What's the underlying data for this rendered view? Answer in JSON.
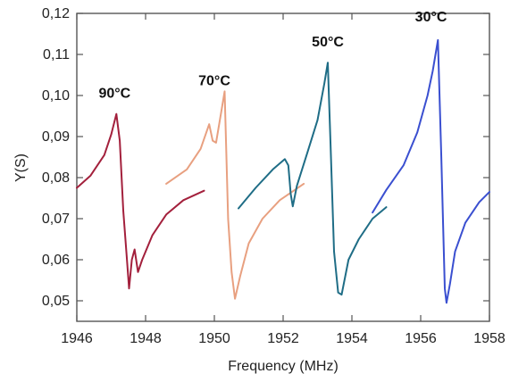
{
  "chart_data": {
    "type": "line",
    "xlabel": "Frequency (MHz)",
    "ylabel": "Y(S)",
    "xlim": [
      1946,
      1958
    ],
    "ylim": [
      0.045,
      0.12
    ],
    "xticks": [
      1946,
      1948,
      1950,
      1952,
      1954,
      1956,
      1958
    ],
    "xtick_labels": [
      "1946",
      "1948",
      "1950",
      "1952",
      "1954",
      "1956",
      "1958"
    ],
    "yticks": [
      0.05,
      0.06,
      0.07,
      0.08,
      0.09,
      0.1,
      0.11,
      0.12
    ],
    "ytick_labels": [
      "0,05",
      "0,06",
      "0,07",
      "0,08",
      "0,09",
      "0,10",
      "0,11",
      "0,12"
    ],
    "grid": false,
    "legend": "none",
    "series": [
      {
        "name": "90°C",
        "color": "#a3203c",
        "label_at": [
          1947.1,
          0.0995
        ],
        "points": [
          [
            1946.0,
            0.0775
          ],
          [
            1946.4,
            0.0805
          ],
          [
            1946.8,
            0.0855
          ],
          [
            1947.0,
            0.0905
          ],
          [
            1947.15,
            0.0955
          ],
          [
            1947.25,
            0.089
          ],
          [
            1947.35,
            0.072
          ],
          [
            1947.45,
            0.061
          ],
          [
            1947.52,
            0.053
          ],
          [
            1947.6,
            0.06
          ],
          [
            1947.68,
            0.0625
          ],
          [
            1947.78,
            0.057
          ],
          [
            1947.9,
            0.06
          ],
          [
            1948.2,
            0.066
          ],
          [
            1948.6,
            0.071
          ],
          [
            1949.1,
            0.0745
          ],
          [
            1949.7,
            0.0768
          ]
        ]
      },
      {
        "name": "70°C",
        "color": "#e8a080",
        "label_at": [
          1950.0,
          0.1025
        ],
        "points": [
          [
            1948.6,
            0.0785
          ],
          [
            1949.2,
            0.082
          ],
          [
            1949.6,
            0.087
          ],
          [
            1949.85,
            0.093
          ],
          [
            1949.95,
            0.089
          ],
          [
            1950.05,
            0.0885
          ],
          [
            1950.2,
            0.096
          ],
          [
            1950.3,
            0.101
          ],
          [
            1950.4,
            0.07
          ],
          [
            1950.5,
            0.057
          ],
          [
            1950.6,
            0.0505
          ],
          [
            1950.75,
            0.056
          ],
          [
            1951.0,
            0.064
          ],
          [
            1951.4,
            0.07
          ],
          [
            1951.9,
            0.0745
          ],
          [
            1952.6,
            0.0785
          ]
        ]
      },
      {
        "name": "50°C",
        "color": "#1f6d86",
        "label_at": [
          1953.3,
          0.112
        ],
        "points": [
          [
            1950.7,
            0.0725
          ],
          [
            1951.2,
            0.0775
          ],
          [
            1951.7,
            0.082
          ],
          [
            1952.05,
            0.0845
          ],
          [
            1952.15,
            0.083
          ],
          [
            1952.22,
            0.076
          ],
          [
            1952.28,
            0.073
          ],
          [
            1952.4,
            0.078
          ],
          [
            1952.7,
            0.086
          ],
          [
            1953.0,
            0.094
          ],
          [
            1953.2,
            0.103
          ],
          [
            1953.3,
            0.108
          ],
          [
            1953.38,
            0.088
          ],
          [
            1953.48,
            0.062
          ],
          [
            1953.6,
            0.052
          ],
          [
            1953.7,
            0.0515
          ],
          [
            1953.9,
            0.06
          ],
          [
            1954.2,
            0.065
          ],
          [
            1954.6,
            0.07
          ],
          [
            1955.0,
            0.0728
          ]
        ]
      },
      {
        "name": "30°C",
        "color": "#3a4fd0",
        "label_at": [
          1956.3,
          0.118
        ],
        "points": [
          [
            1954.6,
            0.0715
          ],
          [
            1955.0,
            0.077
          ],
          [
            1955.5,
            0.083
          ],
          [
            1955.9,
            0.091
          ],
          [
            1956.2,
            0.1
          ],
          [
            1956.35,
            0.106
          ],
          [
            1956.5,
            0.1135
          ],
          [
            1956.6,
            0.085
          ],
          [
            1956.7,
            0.053
          ],
          [
            1956.75,
            0.0495
          ],
          [
            1956.85,
            0.054
          ],
          [
            1957.0,
            0.062
          ],
          [
            1957.3,
            0.069
          ],
          [
            1957.7,
            0.074
          ],
          [
            1958.0,
            0.0765
          ]
        ]
      }
    ]
  }
}
